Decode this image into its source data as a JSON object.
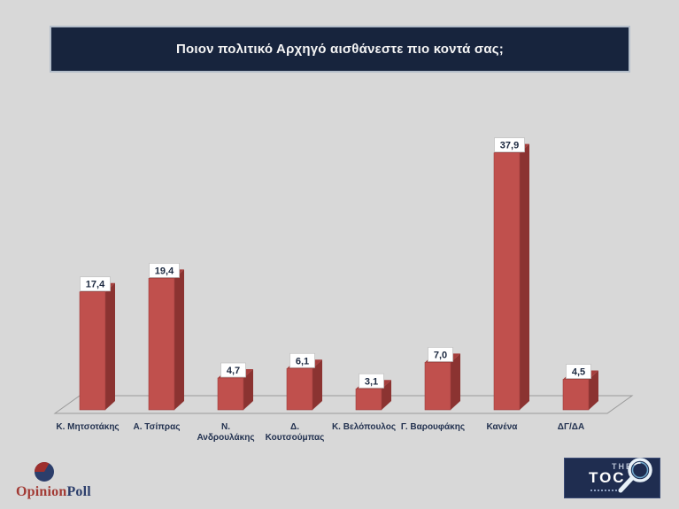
{
  "title": "Ποιον πολιτικό Αρχηγό αισθάνεστε πιο κοντά σας;",
  "chart_data": {
    "type": "bar",
    "style": "3d-column",
    "title": "Ποιον πολιτικό Αρχηγό αισθάνεστε πιο κοντά σας;",
    "categories": [
      "Κ. Μητσοτάκης",
      "Α. Τσίπρας",
      "Ν. Ανδρουλάκης",
      "Δ. Κουτσούμπας",
      "Κ. Βελόπουλος",
      "Γ. Βαρουφάκης",
      "Κανένα",
      "ΔΓ/ΔΑ"
    ],
    "category_lines": [
      [
        "Κ. Μητσοτάκης"
      ],
      [
        "Α. Τσίπρας"
      ],
      [
        "Ν.",
        "Ανδρουλάκης"
      ],
      [
        "Δ.",
        "Κουτσούμπας"
      ],
      [
        "Κ. Βελόπουλος"
      ],
      [
        "Γ. Βαρουφάκης"
      ],
      [
        "Κανένα"
      ],
      [
        "ΔΓ/ΔΑ"
      ]
    ],
    "values": [
      17.4,
      19.4,
      4.7,
      6.1,
      3.1,
      7.0,
      37.9,
      4.5
    ],
    "value_labels": [
      "17,4",
      "19,4",
      "4,7",
      "6,1",
      "3,1",
      "7,0",
      "37,9",
      "4,5"
    ],
    "xlabel": "",
    "ylabel": "",
    "ylim": [
      0,
      40
    ],
    "grid": false,
    "legend": false
  },
  "footer": {
    "opinionpoll": {
      "part1": "Opinion",
      "part2": "Poll"
    },
    "thetoc": {
      "line1": "THE",
      "line2": "TOC"
    }
  },
  "colors": {
    "background": "#d8d8d8",
    "banner": "#17243d",
    "title_text": "#f5f5f5",
    "bar_front": "#c0504d",
    "bar_side": "#8b3331",
    "bar_top": "#a63f3d",
    "bar_edge": "#9e3f3c",
    "value_text": "#1c2940",
    "value_box_border": "#c4c4c4",
    "category_text": "#233250",
    "axis_line": "#9a9a9a",
    "opinion_red": "#a23a34",
    "opinion_navy": "#2c3e6b",
    "toc_box": "#1f2d50"
  }
}
